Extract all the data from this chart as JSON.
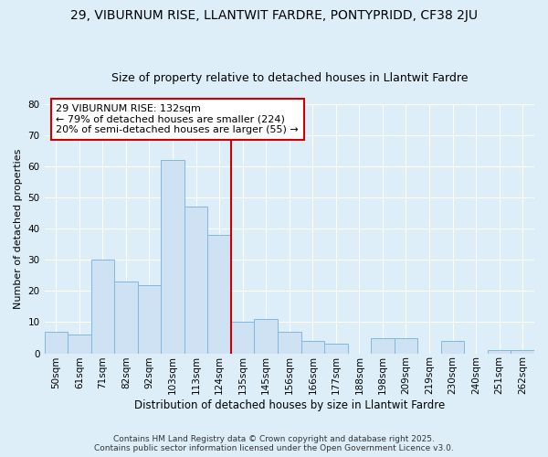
{
  "title1": "29, VIBURNUM RISE, LLANTWIT FARDRE, PONTYPRIDD, CF38 2JU",
  "title2": "Size of property relative to detached houses in Llantwit Fardre",
  "xlabel": "Distribution of detached houses by size in Llantwit Fardre",
  "ylabel": "Number of detached properties",
  "bin_labels": [
    "50sqm",
    "61sqm",
    "71sqm",
    "82sqm",
    "92sqm",
    "103sqm",
    "113sqm",
    "124sqm",
    "135sqm",
    "145sqm",
    "156sqm",
    "166sqm",
    "177sqm",
    "188sqm",
    "198sqm",
    "209sqm",
    "219sqm",
    "230sqm",
    "240sqm",
    "251sqm",
    "262sqm"
  ],
  "bar_values": [
    7,
    6,
    30,
    23,
    22,
    62,
    47,
    38,
    10,
    11,
    7,
    4,
    3,
    0,
    5,
    5,
    0,
    4,
    0,
    1,
    1
  ],
  "bar_color": "#cfe2f3",
  "bar_edge_color": "#7fb8e0",
  "vline_x_index": 8,
  "vline_color": "#cc0000",
  "annotation_title": "29 VIBURNUM RISE: 132sqm",
  "annotation_line1": "← 79% of detached houses are smaller (224)",
  "annotation_line2": "20% of semi-detached houses are larger (55) →",
  "annotation_box_color": "#ffffff",
  "annotation_border_color": "#cc0000",
  "ylim": [
    0,
    80
  ],
  "yticks": [
    0,
    10,
    20,
    30,
    40,
    50,
    60,
    70,
    80
  ],
  "bg_color": "#ddeef8",
  "footer1": "Contains HM Land Registry data © Crown copyright and database right 2025.",
  "footer2": "Contains public sector information licensed under the Open Government Licence v3.0.",
  "title1_fontsize": 10,
  "title2_fontsize": 9,
  "xlabel_fontsize": 8.5,
  "ylabel_fontsize": 8,
  "tick_fontsize": 7.5,
  "annotation_fontsize": 8,
  "footer_fontsize": 6.5
}
